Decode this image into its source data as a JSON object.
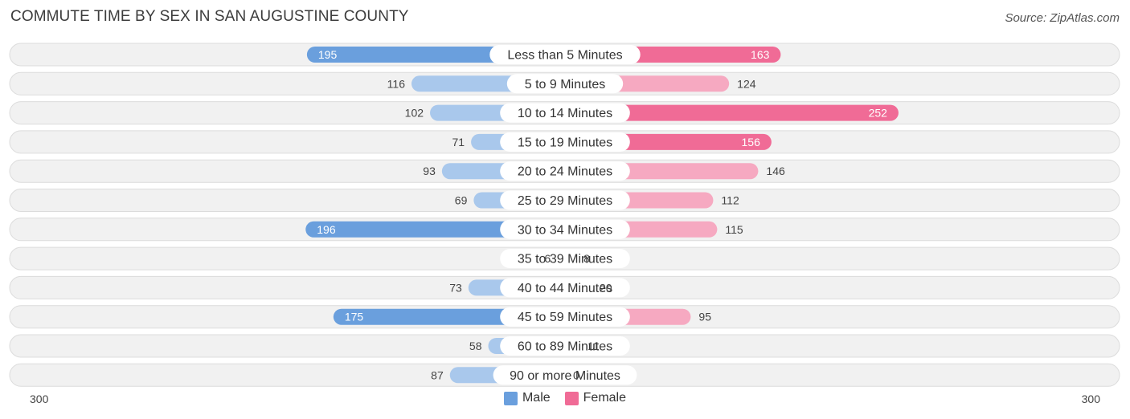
{
  "title": "COMMUTE TIME BY SEX IN SAN AUGUSTINE COUNTY",
  "source": "Source: ZipAtlas.com",
  "colors": {
    "male": "#6a9fdd",
    "male_light": "#a9c8ec",
    "female": "#f06b96",
    "female_light": "#f6a9c1",
    "row_bg": "#f1f1f1",
    "row_border": "#dcdcdc"
  },
  "chart_data": {
    "type": "bar",
    "orientation": "horizontal-diverging",
    "categories": [
      "Less than 5 Minutes",
      "5 to 9 Minutes",
      "10 to 14 Minutes",
      "15 to 19 Minutes",
      "20 to 24 Minutes",
      "25 to 29 Minutes",
      "30 to 34 Minutes",
      "35 to 39 Minutes",
      "40 to 44 Minutes",
      "45 to 59 Minutes",
      "60 to 89 Minutes",
      "90 or more Minutes"
    ],
    "series": [
      {
        "name": "Male",
        "values": [
          195,
          116,
          102,
          71,
          93,
          69,
          196,
          6,
          73,
          175,
          58,
          87
        ]
      },
      {
        "name": "Female",
        "values": [
          163,
          124,
          252,
          156,
          146,
          112,
          115,
          8,
          20,
          95,
          11,
          0
        ]
      }
    ],
    "xlim": [
      0,
      300
    ],
    "axis_left_label": "300",
    "axis_right_label": "300",
    "legend": {
      "position": "bottom-center",
      "entries": [
        "Male",
        "Female"
      ]
    }
  }
}
